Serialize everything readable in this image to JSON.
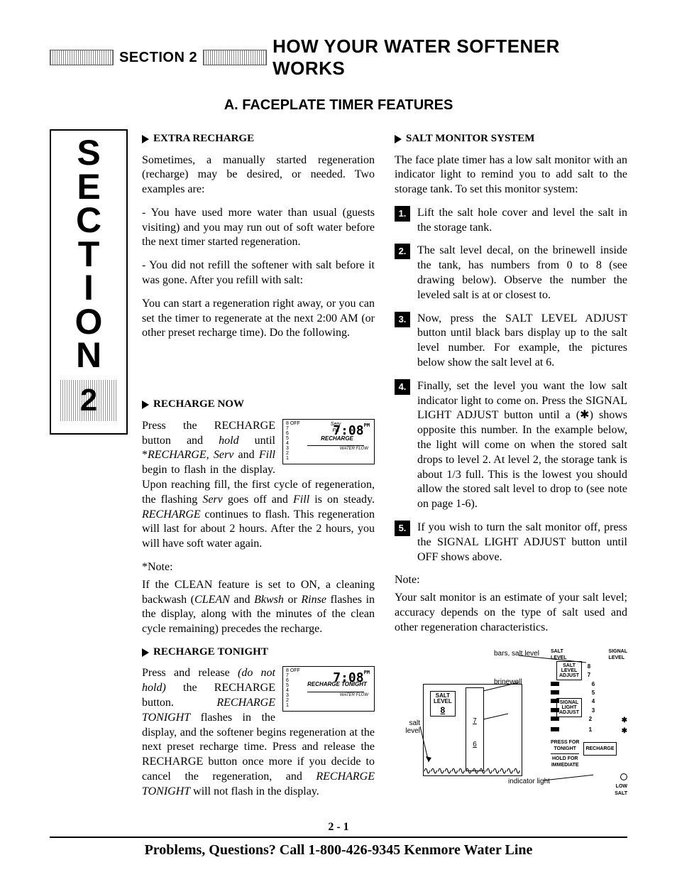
{
  "header": {
    "section_label": "SECTION 2",
    "main_title": "HOW YOUR WATER SOFTENER WORKS"
  },
  "sub_title": "A.  FACEPLATE TIMER FEATURES",
  "side_section": {
    "letters": [
      "S",
      "E",
      "C",
      "T",
      "I",
      "O",
      "N"
    ],
    "number": "2"
  },
  "left_col": {
    "h_extra": "EXTRA RECHARGE",
    "p1": "Sometimes, a manually started regeneration (recharge) may be desired, or needed. Two examples are:",
    "p2": "- You have used more water than usual (guests visiting) and you may run out of soft water before the next timer started regeneration.",
    "p3": "- You did not refill the softener with salt before it was gone. After you refill with salt:",
    "p4": "You can start a regeneration right away, or you can set the timer to regenerate at the next 2:00 AM (or other preset recharge time). Do the following.",
    "h_now_pre": "RECHARGE ",
    "h_now_bold": "NOW",
    "now_p1a": "Press the RECHARGE button and ",
    "now_p1_hold": "hold",
    "now_p1b": " until *",
    "now_p1_rech": "RECHARGE, Serv",
    "now_p1c": " and ",
    "now_p1_fill": "Fill",
    "now_p1d": " begin to flash in the display. Upon reaching fill, the first cycle of regeneration, the flashing ",
    "now_p1_serv": "Serv",
    "now_p1e": " goes off and ",
    "now_p1_fill2": "Fill",
    "now_p1f": " is on steady. ",
    "now_p1_rech2": "RECHARGE",
    "now_p1g": " continues to flash. This regeneration will last for about 2 hours. After the 2 hours, you will have soft water again.",
    "note_star": "*Note:",
    "note_p": "If the CLEAN feature is set to ON, a cleaning backwash (",
    "note_clean": "CLEAN",
    "note_p2": " and ",
    "note_bkwsh": "Bkwsh",
    "note_p3": " or ",
    "note_rinse": "Rinse",
    "note_p4": " flashes in the display, along with the minutes of the clean cycle remaining) precedes the recharge.",
    "h_tonight_pre": "RECHARGE ",
    "h_tonight_bold": "TONIGHT",
    "tonight_p1a": "Press and release ",
    "tonight_dnh": "(do not hold)",
    "tonight_p1b": " the RECHARGE button. ",
    "tonight_rt": "RECHARGE TONIGHT",
    "tonight_p1c": " flashes in the display, and the softener begins regeneration at the next preset recharge time. Press and release the RECHARGE button once more if you decide to cancel the regeneration, and ",
    "tonight_rt2": "RECHARGE TONIGHT",
    "tonight_p1d": " will not flash in the display."
  },
  "display1": {
    "scale": "8 OFF\n7\n6\n5\n4\n3\n2\n1",
    "serv": "Serv",
    "fill": "Fill",
    "time": "7:08",
    "pm": "PM",
    "mid": "RECHARGE",
    "flow": "WATER FLOW"
  },
  "display2": {
    "scale": "8 OFF\n7\n6\n5\n4\n3\n2\n1",
    "time": "7:08",
    "pm": "PM",
    "mid": "RECHARGE TONIGHT",
    "flow": "WATER FLOW"
  },
  "right_col": {
    "h_salt": "SALT MONITOR SYSTEM",
    "intro": "The face plate timer has a low salt monitor with an indicator light to remind you to add salt to the storage tank. To set this monitor system:",
    "s1": "Lift the salt hole cover and level the salt in the storage tank.",
    "s2": "The salt level decal, on the brinewell inside the tank, has numbers from 0 to 8 (see drawing below). Observe the number the leveled salt is at or closest to.",
    "s3": "Now, press the SALT LEVEL ADJUST button until black bars display up to the salt level number. For example, the pictures below show the salt level at 6.",
    "s4": "Finally, set the level you want the low salt indicator light to come on. Press the SIGNAL LIGHT ADJUST button until a (✱) shows opposite this number. In the example below, the light will come on when the stored salt drops to level 2. At level 2, the storage tank is about 1/3 full. This is the lowest you should allow the stored salt level to drop to (see note on page 1-6).",
    "s5": "If you wish to turn the salt monitor off, press the SIGNAL LIGHT ADJUST button until OFF shows above.",
    "note_h": "Note:",
    "note": "Your salt monitor is an estimate of your salt level; accuracy depends on the type of salt used and other regeneration characteristics."
  },
  "diagram": {
    "bars_lbl": "bars, salt level",
    "brine_lbl": "brinewell",
    "decal_lbl": "decal",
    "salt_lbl": "salt level",
    "ind_lbl": "indicator light",
    "saltlevel_title": "SALT\nLEVEL",
    "saltlevel_val": "8",
    "brine_nums": [
      "7",
      "6"
    ],
    "panel_head_l": "SALT\nLEVEL",
    "panel_head_r": "SIGNAL\nLEVEL",
    "btn_salt": "SALT\nLEVEL\nADJUST",
    "btn_signal": "SIGNAL\nLIGHT\nADJUST",
    "press_tonight": "PRESS FOR\nTONIGHT",
    "hold_imm": "HOLD FOR\nIMMEDIATE",
    "recharge": "RECHARGE",
    "low_salt": "LOW\nSALT",
    "levels": [
      "8",
      "7",
      "6",
      "5",
      "4",
      "3",
      "2",
      "1"
    ],
    "bar_on": [
      false,
      false,
      true,
      true,
      true,
      true,
      true,
      true
    ],
    "star_on": [
      false,
      false,
      false,
      false,
      false,
      false,
      true,
      true
    ]
  },
  "page_num": "2 - 1",
  "footer": "Problems, Questions? Call 1-800-426-9345 Kenmore Water Line"
}
